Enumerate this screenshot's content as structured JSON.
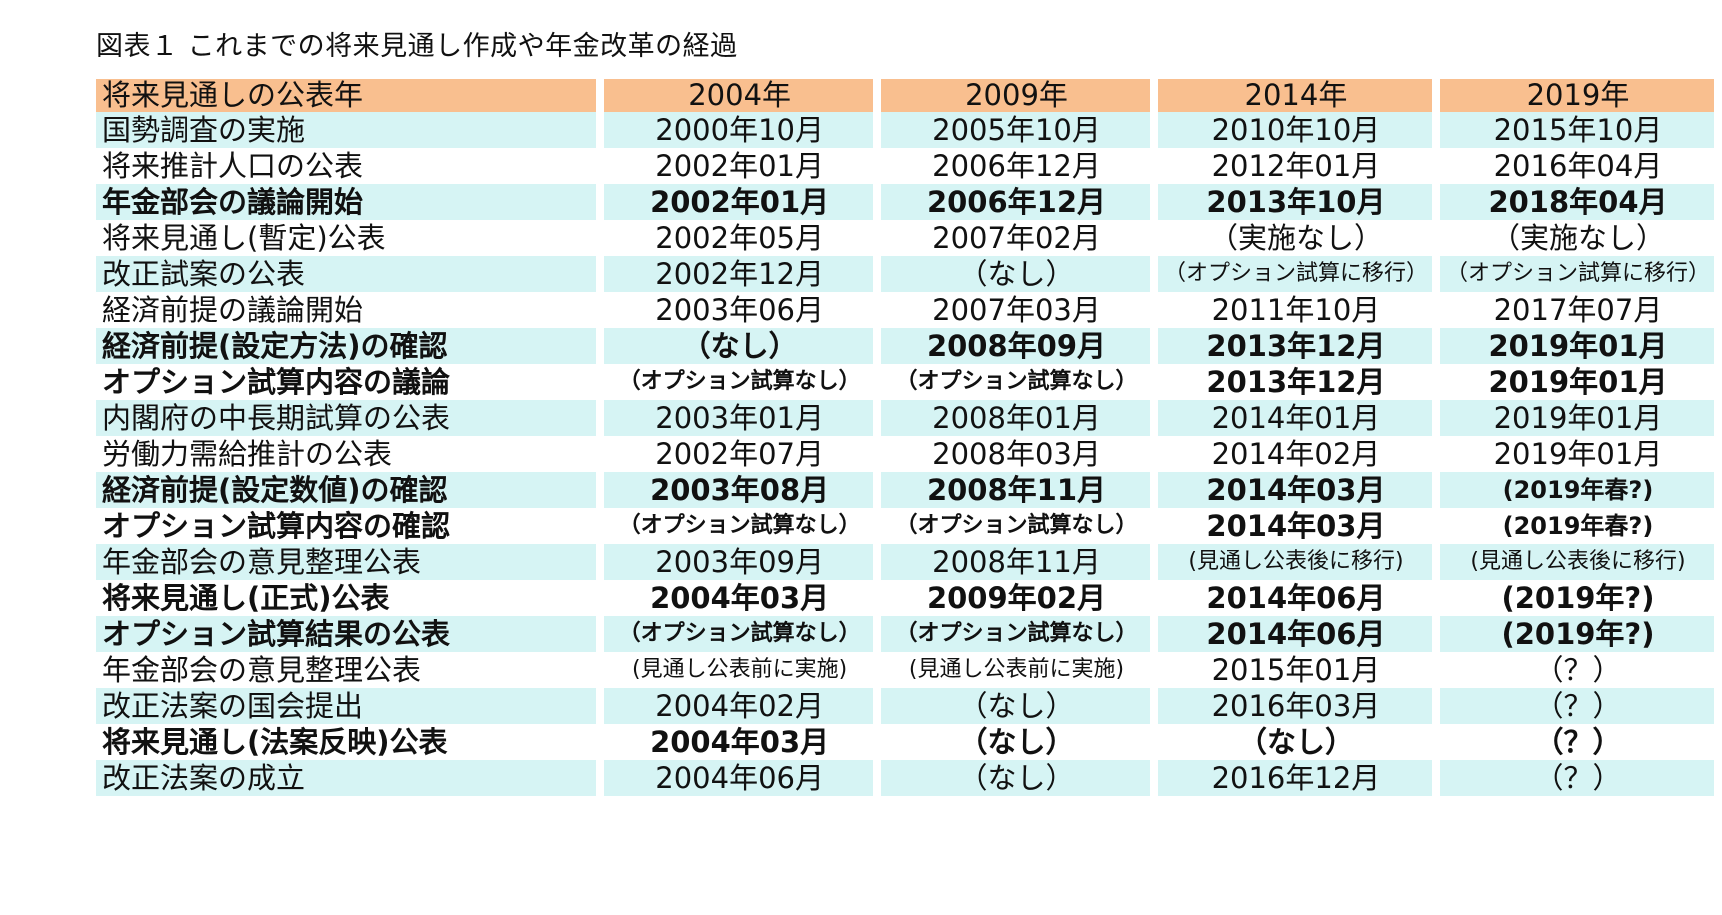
{
  "title": "図表１ これまでの将来見通し作成や年金改革の経過",
  "colors": {
    "header_bg": "#f9bf8f",
    "shade_bg": "#d6f4f4"
  },
  "header": {
    "label": "将来見通しの公表年",
    "years": [
      "2004年",
      "2009年",
      "2014年",
      "2019年"
    ]
  },
  "rows": [
    {
      "label": "国勢調査の実施",
      "values": [
        "2000年10月",
        "2005年10月",
        "2010年10月",
        "2015年10月"
      ],
      "bold": false,
      "shaded": true
    },
    {
      "label": "将来推計人口の公表",
      "values": [
        "2002年01月",
        "2006年12月",
        "2012年01月",
        "2016年04月"
      ],
      "bold": false,
      "shaded": false
    },
    {
      "label": "年金部会の議論開始",
      "values": [
        "2002年01月",
        "2006年12月",
        "2013年10月",
        "2018年04月"
      ],
      "bold": true,
      "shaded": true
    },
    {
      "label": "将来見通し(暫定)公表",
      "values": [
        "2002年05月",
        "2007年02月",
        "（実施なし）",
        "（実施なし）"
      ],
      "bold": false,
      "shaded": false
    },
    {
      "label": "改正試案の公表",
      "values": [
        "2002年12月",
        "（なし）",
        "（オプション試算に移行）",
        "（オプション試算に移行）"
      ],
      "bold": false,
      "shaded": true
    },
    {
      "label": "経済前提の議論開始",
      "values": [
        "2003年06月",
        "2007年03月",
        "2011年10月",
        "2017年07月"
      ],
      "bold": false,
      "shaded": false
    },
    {
      "label": "経済前提(設定方法)の確認",
      "values": [
        "（なし）",
        "2008年09月",
        "2013年12月",
        "2019年01月"
      ],
      "bold": true,
      "shaded": true
    },
    {
      "label": "オプション試算内容の議論",
      "values": [
        "（オプション試算なし）",
        "（オプション試算なし）",
        "2013年12月",
        "2019年01月"
      ],
      "bold": true,
      "shaded": false
    },
    {
      "label": "内閣府の中長期試算の公表",
      "values": [
        "2003年01月",
        "2008年01月",
        "2014年01月",
        "2019年01月"
      ],
      "bold": false,
      "shaded": true
    },
    {
      "label": "労働力需給推計の公表",
      "values": [
        "2002年07月",
        "2008年03月",
        "2014年02月",
        "2019年01月"
      ],
      "bold": false,
      "shaded": false
    },
    {
      "label": "経済前提(設定数値)の確認",
      "values": [
        "2003年08月",
        "2008年11月",
        "2014年03月",
        "(2019年春?)"
      ],
      "bold": true,
      "shaded": true
    },
    {
      "label": "オプション試算内容の確認",
      "values": [
        "（オプション試算なし）",
        "（オプション試算なし）",
        "2014年03月",
        "(2019年春?)"
      ],
      "bold": true,
      "shaded": false
    },
    {
      "label": "年金部会の意見整理公表",
      "values": [
        "2003年09月",
        "2008年11月",
        "(見通し公表後に移行)",
        "(見通し公表後に移行)"
      ],
      "bold": false,
      "shaded": true
    },
    {
      "label": "将来見通し(正式)公表",
      "values": [
        "2004年03月",
        "2009年02月",
        "2014年06月",
        "(2019年?)"
      ],
      "bold": true,
      "shaded": false
    },
    {
      "label": "オプション試算結果の公表",
      "values": [
        "（オプション試算なし）",
        "（オプション試算なし）",
        "2014年06月",
        "(2019年?)"
      ],
      "bold": true,
      "shaded": true
    },
    {
      "label": "年金部会の意見整理公表",
      "values": [
        "(見通し公表前に実施)",
        "(見通し公表前に実施)",
        "2015年01月",
        "（？）"
      ],
      "bold": false,
      "shaded": false
    },
    {
      "label": "改正法案の国会提出",
      "values": [
        "2004年02月",
        "（なし）",
        "2016年03月",
        "（？）"
      ],
      "bold": false,
      "shaded": true
    },
    {
      "label": "将来見通し(法案反映)公表",
      "values": [
        "2004年03月",
        "（なし）",
        "（なし）",
        "（？）"
      ],
      "bold": true,
      "shaded": false
    },
    {
      "label": "改正法案の成立",
      "values": [
        "2004年06月",
        "（なし）",
        "2016年12月",
        "（？）"
      ],
      "bold": false,
      "shaded": true
    }
  ]
}
